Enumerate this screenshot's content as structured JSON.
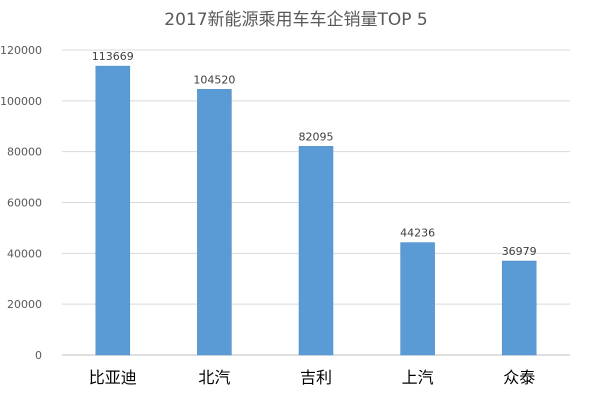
{
  "chart_data": {
    "type": "bar",
    "title": "2017新能源乘用车车企销量TOP 5",
    "categories": [
      "比亚迪",
      "北汽",
      "吉利",
      "上汽",
      "众泰"
    ],
    "values": [
      113669,
      104520,
      82095,
      44236,
      36979
    ],
    "data_labels": [
      "113669",
      "104520",
      "82095",
      "44236",
      "36979"
    ],
    "ylim": [
      0,
      120000
    ],
    "yticks": [
      0,
      20000,
      40000,
      60000,
      80000,
      100000,
      120000
    ],
    "ytick_labels": [
      "0",
      "20000",
      "40000",
      "60000",
      "80000",
      "100000",
      "120000"
    ],
    "grid": "horizontal",
    "legend": "none",
    "xlabel": "",
    "ylabel": ""
  },
  "colors": {
    "bar": "#5b9bd5",
    "bar_edge": "#4a8ac4",
    "grid": "#d9d9d9",
    "axis": "#bfbfbf",
    "tick_text": "#595959",
    "title_text": "#595959",
    "label_text": "#404040",
    "category_text": "#000000"
  }
}
